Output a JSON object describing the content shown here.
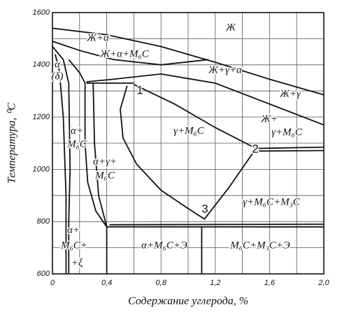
{
  "chart_data": {
    "type": "phase-diagram",
    "xlabel": "Содержание углерода, %",
    "ylabel": "Температура, ⁰C",
    "xlim": [
      0,
      2.0
    ],
    "ylim": [
      600,
      1600
    ],
    "xticks": [
      0,
      {
        "value": 0.4,
        "label": "0,4"
      },
      {
        "value": 0.8,
        "label": "0,8"
      },
      {
        "value": 1.2,
        "label": "1,2"
      },
      {
        "value": 1.6,
        "label": "1,6"
      },
      {
        "value": 2.0,
        "label": "2,0"
      }
    ],
    "yticks": [
      600,
      800,
      1000,
      1200,
      1400,
      1600
    ],
    "grid_x": [
      0.2,
      0.6,
      1.0,
      1.4,
      1.8
    ],
    "grid_y": [
      700,
      900,
      1100,
      1300,
      1500
    ],
    "grid": true,
    "color": "#111111",
    "lines": [
      {
        "x": [
          0,
          0.4,
          0.8,
          1.2,
          1.6,
          2.0
        ],
        "y": [
          1540,
          1515,
          1470,
          1410,
          1345,
          1285
        ]
      },
      {
        "x": [
          0,
          0.2,
          0.45,
          0.8,
          1.15
        ],
        "y": [
          1490,
          1455,
          1420,
          1400,
          1420
        ]
      },
      {
        "x": [
          0.25,
          0.45,
          0.8,
          1.2,
          1.6,
          2.0
        ],
        "y": [
          1335,
          1345,
          1365,
          1330,
          1250,
          1170
        ]
      },
      {
        "x": [
          0.25,
          0.6
        ],
        "y": [
          1330,
          1330
        ]
      },
      {
        "x": [
          0.55,
          0.5,
          0.52,
          0.62,
          0.8,
          1.0,
          1.12,
          1.3,
          1.5
        ],
        "y": [
          1320,
          1230,
          1120,
          1020,
          920,
          850,
          810,
          930,
          1080
        ]
      },
      {
        "x": [
          0.6,
          0.9,
          1.2,
          1.5
        ],
        "y": [
          1325,
          1250,
          1160,
          1080
        ]
      },
      {
        "x": [
          1.5,
          2.0
        ],
        "y": [
          1080,
          1085
        ]
      },
      {
        "x": [
          1.52,
          2.0
        ],
        "y": [
          1070,
          1072
        ]
      },
      {
        "x": [
          0.3,
          0.31,
          0.34,
          0.4
        ],
        "y": [
          1330,
          1100,
          900,
          780
        ]
      },
      {
        "x": [
          0.24,
          0.24,
          0.26,
          0.32,
          0.4
        ],
        "y": [
          1330,
          1100,
          950,
          840,
          780
        ]
      },
      {
        "x": [
          0.4,
          2.0
        ],
        "y": [
          780,
          780
        ]
      },
      {
        "x": [
          0.42,
          2.0
        ],
        "y": [
          788,
          790
        ]
      },
      {
        "x": [
          1.1,
          1.1
        ],
        "y": [
          780,
          600
        ]
      },
      {
        "x": [
          0.4,
          0.4
        ],
        "y": [
          780,
          600
        ]
      },
      {
        "x": [
          0,
          0.08,
          0.12,
          0.13,
          0.12,
          0.12
        ],
        "y": [
          1470,
          1420,
          1330,
          1000,
          800,
          600
        ]
      },
      {
        "x": [
          0.02,
          0.05,
          0.08,
          0.1,
          0.1
        ],
        "y": [
          1440,
          1380,
          1200,
          900,
          600
        ]
      },
      {
        "x": [
          0.12,
          0.2,
          0.24
        ],
        "y": [
          1420,
          1370,
          1330
        ]
      }
    ],
    "annotations": [
      "Ж",
      "Ж+α",
      "Ж+α+M₆C",
      "Ж+γ+α",
      "Ж+γ",
      "Ж+",
      "γ+M₆C",
      "γ+M₆C",
      "α+",
      "M₆C",
      "α+γ+",
      "M₆C",
      "γ+M₆C+M₃C",
      "α+",
      "M₆C+",
      "+ξ",
      "α+M₆C+Э",
      "M₆C+M₃C+Э",
      "α",
      "(δ)",
      "1",
      "2",
      "3"
    ]
  }
}
